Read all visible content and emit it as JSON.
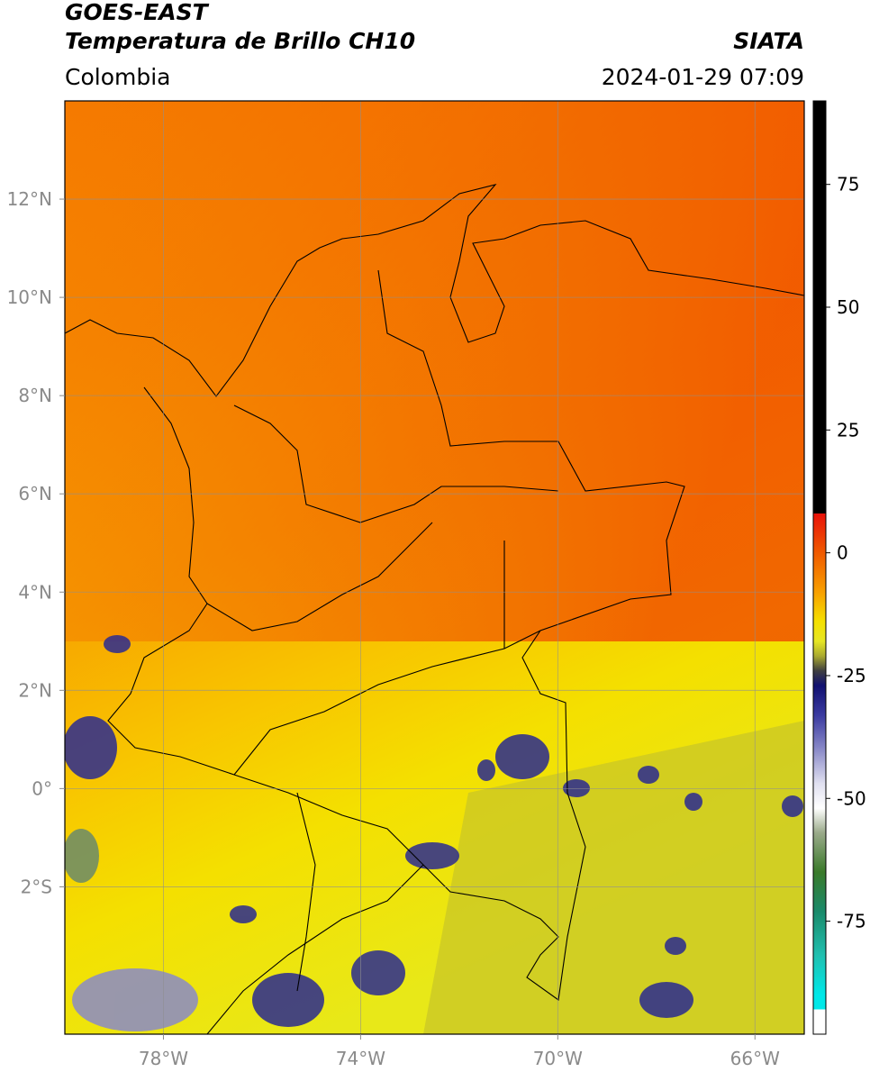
{
  "header": {
    "title": "GOES-EAST",
    "subtitle": "Temperatura de Brillo CH10",
    "region": "Colombia",
    "source": "SIATA",
    "datetime": "2024-01-29 07:09"
  },
  "map": {
    "xlim": [
      -80,
      -65
    ],
    "ylim": [
      -5,
      14
    ],
    "grid": true,
    "xticks": [
      {
        "value": -78,
        "label": "78°W"
      },
      {
        "value": -74,
        "label": "74°W"
      },
      {
        "value": -70,
        "label": "70°W"
      },
      {
        "value": -66,
        "label": "66°W"
      }
    ],
    "yticks": [
      {
        "value": 12,
        "label": "12°N"
      },
      {
        "value": 10,
        "label": "10°N"
      },
      {
        "value": 8,
        "label": "8°N"
      },
      {
        "value": 6,
        "label": "6°N"
      },
      {
        "value": 4,
        "label": "4°N"
      },
      {
        "value": 2,
        "label": "2°N"
      },
      {
        "value": 0,
        "label": "0°"
      },
      {
        "value": -2,
        "label": "2°S"
      }
    ]
  },
  "colorbar": {
    "lim": [
      -98,
      92
    ],
    "ticks": [
      75,
      50,
      25,
      0,
      -25,
      -50,
      -75
    ],
    "colormap": [
      {
        "value": 92,
        "color": "#000000"
      },
      {
        "value": 8,
        "color": "#000000"
      },
      {
        "value": 8,
        "color": "#e8120a"
      },
      {
        "value": 0,
        "color": "#f05a00"
      },
      {
        "value": -8,
        "color": "#f8a000"
      },
      {
        "value": -14,
        "color": "#f5e000"
      },
      {
        "value": -18,
        "color": "#e6e624"
      },
      {
        "value": -21,
        "color": "#aaaa30"
      },
      {
        "value": -24,
        "color": "#404040"
      },
      {
        "value": -27,
        "color": "#101070"
      },
      {
        "value": -33,
        "color": "#3a3aa0"
      },
      {
        "value": -40,
        "color": "#8a8ac8"
      },
      {
        "value": -47,
        "color": "#e0e0f0"
      },
      {
        "value": -52,
        "color": "#ffffff"
      },
      {
        "value": -57,
        "color": "#9aaa8a"
      },
      {
        "value": -65,
        "color": "#3a7a2a"
      },
      {
        "value": -73,
        "color": "#1a8a6a"
      },
      {
        "value": -82,
        "color": "#20c0b0"
      },
      {
        "value": -90,
        "color": "#00e8e8"
      },
      {
        "value": -93,
        "color": "#00e8e8"
      },
      {
        "value": -93,
        "color": "#ffffff"
      },
      {
        "value": -98,
        "color": "#ffffff"
      }
    ]
  }
}
